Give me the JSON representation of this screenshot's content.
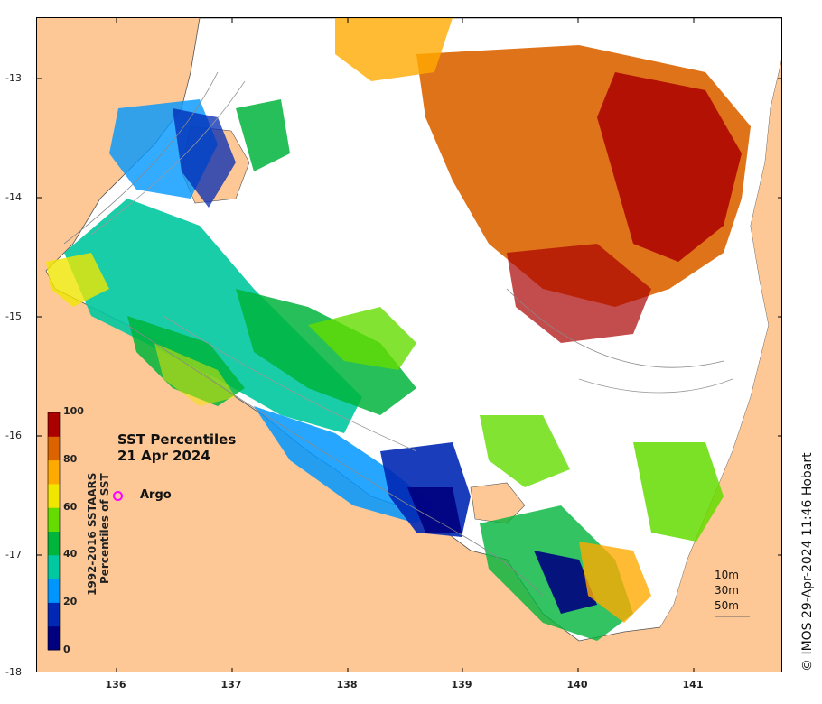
{
  "title": {
    "line1": "SST Percentiles",
    "line2": "21 Apr 2024"
  },
  "legend": {
    "argo_label": "Argo",
    "argo_color": "#ff00ff"
  },
  "colorbar": {
    "title_line1": "1992-2016 SSTAARS",
    "title_line2": "Percentiles of SST",
    "tick_labels": [
      "100",
      "80",
      "60",
      "40",
      "20",
      "0"
    ],
    "colors": [
      "#000080",
      "#0028b4",
      "#0096ff",
      "#00c8a0",
      "#00b43c",
      "#64dc00",
      "#f0e600",
      "#ffaa00",
      "#dc6400",
      "#aa0000"
    ]
  },
  "axes": {
    "lat_labels": [
      "-13",
      "-14",
      "-15",
      "-16",
      "-17",
      "-18"
    ],
    "lon_labels": [
      "136",
      "137",
      "138",
      "139",
      "140",
      "141"
    ]
  },
  "depth_legend": [
    "10m",
    "30m",
    "50m"
  ],
  "credit": "© IMOS 29-Apr-2024 11:46 Hobart",
  "colors": {
    "land": "#fdc896",
    "sea_no_data": "#ffffff"
  }
}
